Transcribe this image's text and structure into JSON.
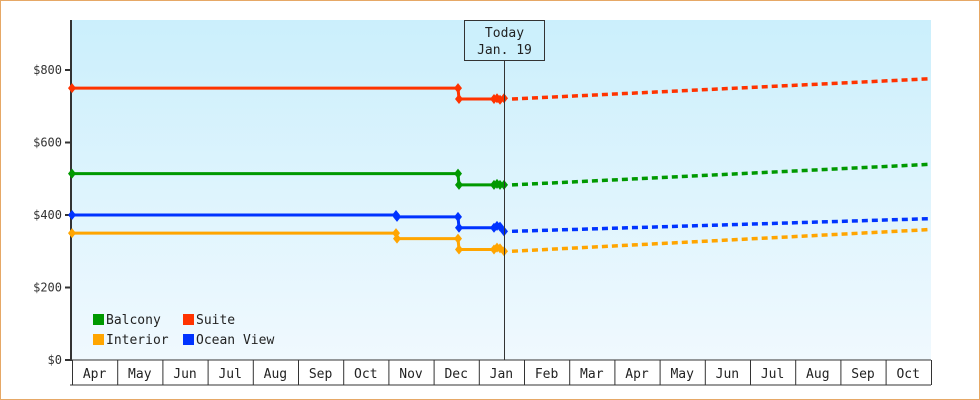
{
  "chart_data": {
    "type": "line",
    "title": "",
    "xlabel": "",
    "ylabel": "",
    "ylim": [
      0,
      930
    ],
    "yticks": [
      "$0",
      "$200",
      "$400",
      "$600",
      "$800"
    ],
    "ytick_values": [
      0,
      200,
      400,
      600,
      800
    ],
    "months": [
      "Apr",
      "May",
      "Jun",
      "Jul",
      "Aug",
      "Sep",
      "Oct",
      "Nov",
      "Dec",
      "Jan",
      "Feb",
      "Mar",
      "Apr",
      "May",
      "Jun",
      "Jul",
      "Aug",
      "Sep",
      "Oct"
    ],
    "today_marker": {
      "line1": "Today",
      "line2": "Jan. 19"
    },
    "legend": [
      {
        "name": "Balcony",
        "color": "#009900"
      },
      {
        "name": "Suite",
        "color": "#ff3300"
      },
      {
        "name": "Interior",
        "color": "#ffa500"
      },
      {
        "name": "Ocean View",
        "color": "#0033ff"
      }
    ],
    "series": [
      {
        "name": "Suite",
        "color": "#ff3300",
        "history": [
          {
            "x": "Apr",
            "y": 750
          },
          {
            "x": "Dec",
            "y": 750
          },
          {
            "x": "Dec",
            "y": 720
          },
          {
            "x": "Jan",
            "y": 720
          }
        ],
        "forecast": [
          {
            "x": "Jan 19",
            "y": 720
          },
          {
            "x": "Oct (end)",
            "y": 776
          }
        ]
      },
      {
        "name": "Balcony",
        "color": "#009900",
        "history": [
          {
            "x": "Apr",
            "y": 514
          },
          {
            "x": "Dec",
            "y": 514
          },
          {
            "x": "Dec",
            "y": 483
          },
          {
            "x": "Jan",
            "y": 483
          }
        ],
        "forecast": [
          {
            "x": "Jan 19",
            "y": 483
          },
          {
            "x": "Oct (end)",
            "y": 540
          }
        ]
      },
      {
        "name": "Ocean View",
        "color": "#0033ff",
        "history": [
          {
            "x": "Apr",
            "y": 400
          },
          {
            "x": "Nov",
            "y": 400
          },
          {
            "x": "Nov",
            "y": 395
          },
          {
            "x": "Dec",
            "y": 395
          },
          {
            "x": "Dec",
            "y": 365
          },
          {
            "x": "Jan",
            "y": 365
          },
          {
            "x": "Jan 19",
            "y": 355
          }
        ],
        "forecast": [
          {
            "x": "Jan 19",
            "y": 355
          },
          {
            "x": "Oct (end)",
            "y": 390
          }
        ]
      },
      {
        "name": "Interior",
        "color": "#ffa500",
        "history": [
          {
            "x": "Apr",
            "y": 350
          },
          {
            "x": "Nov",
            "y": 350
          },
          {
            "x": "Nov",
            "y": 335
          },
          {
            "x": "Dec",
            "y": 335
          },
          {
            "x": "Dec",
            "y": 305
          },
          {
            "x": "Jan",
            "y": 305
          },
          {
            "x": "Jan 19",
            "y": 300
          }
        ],
        "forecast": [
          {
            "x": "Jan 19",
            "y": 300
          },
          {
            "x": "Oct (end)",
            "y": 360
          }
        ]
      }
    ],
    "grid": false,
    "legend_position": "lower-left inside plot"
  }
}
